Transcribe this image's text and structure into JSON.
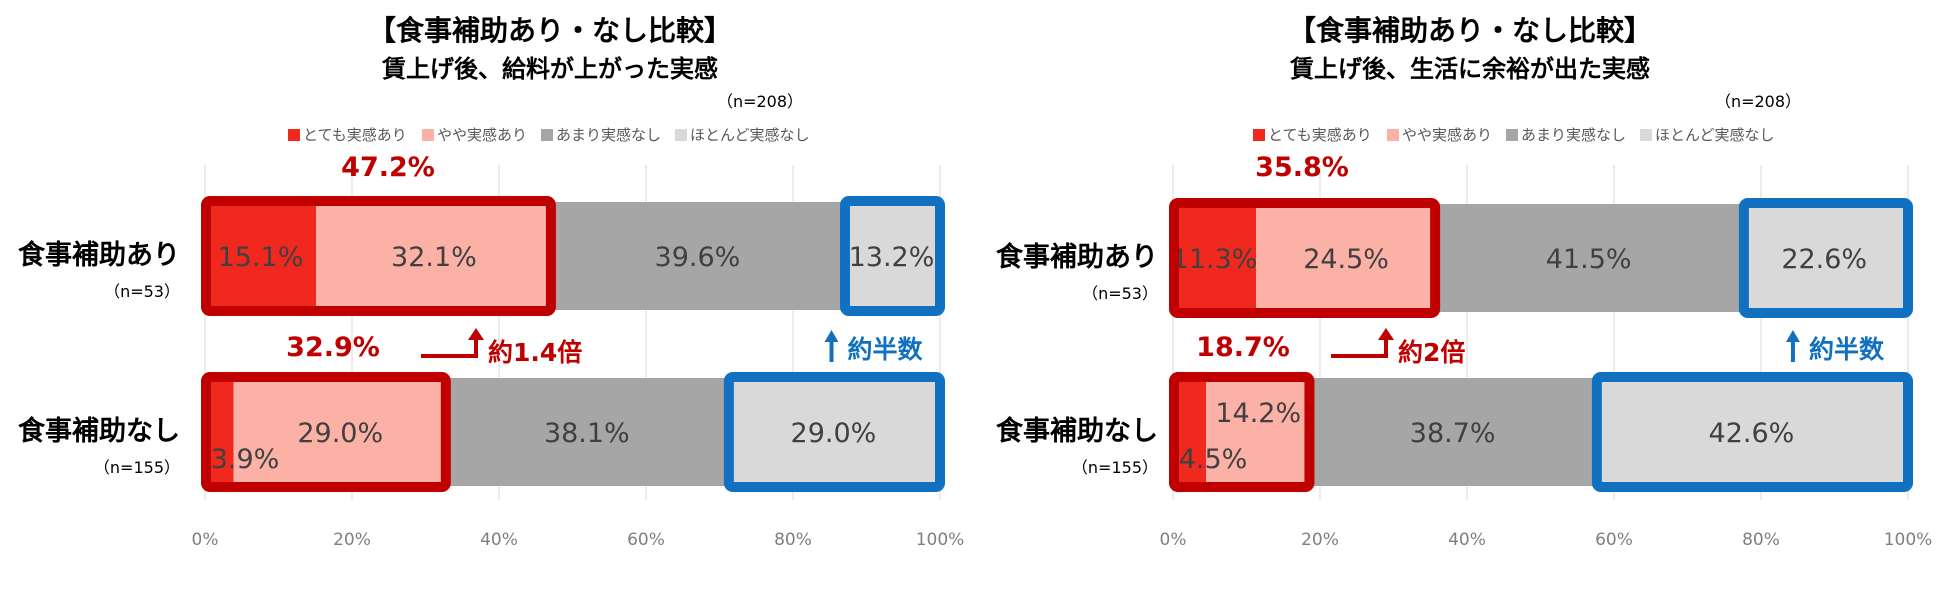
{
  "chart_data": [
    {
      "type": "bar",
      "stacked": true,
      "orientation": "horizontal",
      "title": "【食事補助あり・なし比較】",
      "subtitle": "賃上げ後、給料が上がった実感",
      "total_n": "（n=208）",
      "categories": [
        "食事補助あり",
        "食事補助なし"
      ],
      "category_n": [
        "（n=53）",
        "（n=155）"
      ],
      "series": [
        {
          "name": "とても実感あり",
          "values": [
            15.1,
            3.9
          ]
        },
        {
          "name": "やや実感あり",
          "values": [
            32.1,
            29.0
          ]
        },
        {
          "name": "あまり実感なし",
          "values": [
            39.6,
            38.1
          ]
        },
        {
          "name": "ほとんど実感なし",
          "values": [
            13.2,
            29.0
          ]
        }
      ],
      "data_labels": [
        [
          "15.1%",
          "32.1%",
          "39.6%",
          "13.2%"
        ],
        [
          "3.9%",
          "29.0%",
          "38.1%",
          "29.0%"
        ]
      ],
      "positive_totals": [
        "47.2%",
        "32.9%"
      ],
      "positive_total_values": [
        47.2,
        32.9
      ],
      "negative_total_values": [
        13.2,
        29.0
      ],
      "ratio_annotation": "約1.4倍",
      "half_annotation": "約半数",
      "xlim": [
        0,
        100
      ],
      "xticks": [
        "0%",
        "20%",
        "40%",
        "60%",
        "80%",
        "100%"
      ],
      "grid": true,
      "legend_position": "top"
    },
    {
      "type": "bar",
      "stacked": true,
      "orientation": "horizontal",
      "title": "【食事補助あり・なし比較】",
      "subtitle": "賃上げ後、生活に余裕が出た実感",
      "total_n": "（n=208）",
      "categories": [
        "食事補助あり",
        "食事補助なし"
      ],
      "category_n": [
        "（n=53）",
        "（n=155）"
      ],
      "series": [
        {
          "name": "とても実感あり",
          "values": [
            11.3,
            4.5
          ]
        },
        {
          "name": "やや実感あり",
          "values": [
            24.5,
            14.2
          ]
        },
        {
          "name": "あまり実感なし",
          "values": [
            41.5,
            38.7
          ]
        },
        {
          "name": "ほとんど実感なし",
          "values": [
            22.6,
            42.6
          ]
        }
      ],
      "data_labels": [
        [
          "11.3%",
          "24.5%",
          "41.5%",
          "22.6%"
        ],
        [
          "4.5%",
          "14.2%",
          "38.7%",
          "42.6%"
        ]
      ],
      "positive_totals": [
        "35.8%",
        "18.7%"
      ],
      "positive_total_values": [
        35.8,
        18.7
      ],
      "negative_total_values": [
        22.6,
        42.6
      ],
      "ratio_annotation": "約2倍",
      "half_annotation": "約半数",
      "xlim": [
        0,
        100
      ],
      "xticks": [
        "0%",
        "20%",
        "40%",
        "60%",
        "80%",
        "100%"
      ],
      "grid": true,
      "legend_position": "top"
    }
  ],
  "colors": {
    "series": [
      "#f0281e",
      "#fbb1a5",
      "#a6a6a6",
      "#d9d9d9"
    ],
    "positive_box": "#c00000",
    "negative_box": "#1171c0",
    "title": "#000000",
    "axis_text": "#7f7f7f",
    "grid": "#d9d9d9",
    "label_text": "#404040"
  }
}
